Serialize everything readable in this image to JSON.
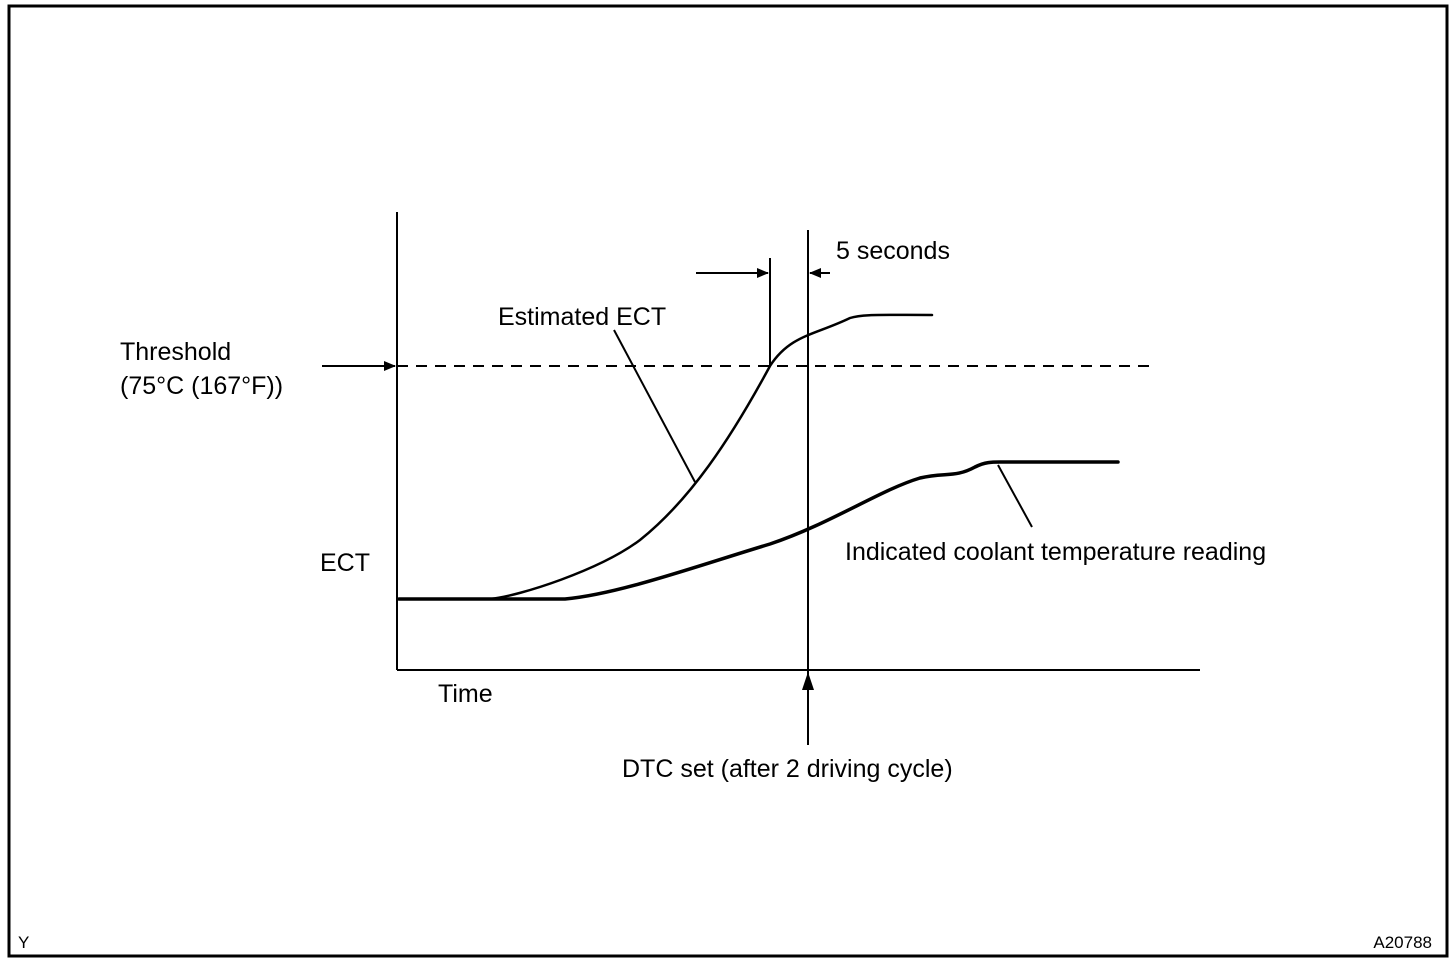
{
  "diagram": {
    "labels": {
      "threshold_line1": "Threshold",
      "threshold_line2": "(75°C (167°F))",
      "estimated_ect": "Estimated ECT",
      "five_seconds": "5 seconds",
      "ect_axis": "ECT",
      "time_axis": "Time",
      "indicated_reading": "Indicated coolant temperature reading",
      "dtc_set": "DTC set (after 2 driving cycle)"
    },
    "corner": {
      "left_code": "Y",
      "figure_id": "A20788"
    },
    "colors": {
      "line": "#000000",
      "background": "#ffffff"
    }
  }
}
